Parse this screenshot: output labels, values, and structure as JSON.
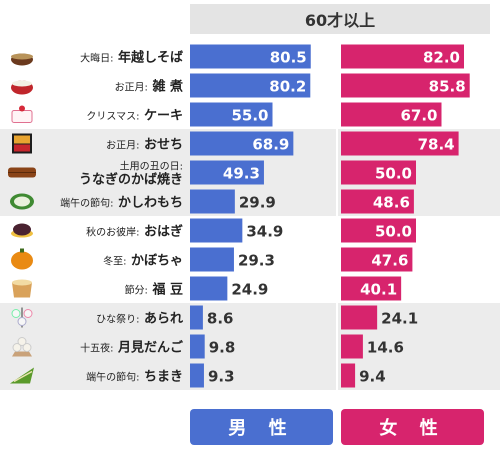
{
  "chart_data": {
    "type": "bar",
    "title": "60才以上",
    "categories": [
      {
        "prefix": "大晦日:",
        "name": "年越しそば",
        "icon": "soba-bowl-icon"
      },
      {
        "prefix": "お正月:",
        "name": "雑 煮",
        "icon": "zoni-bowl-icon"
      },
      {
        "prefix": "クリスマス:",
        "name": "ケーキ",
        "icon": "cake-icon"
      },
      {
        "prefix": "お正月:",
        "name": "おせち",
        "icon": "osechi-box-icon"
      },
      {
        "prefix": "土用の丑の日:",
        "name": "うなぎのかば焼き",
        "icon": "eel-skewer-icon"
      },
      {
        "prefix": "端午の節句:",
        "name": "かしわもち",
        "icon": "kashiwamochi-icon"
      },
      {
        "prefix": "秋のお彼岸:",
        "name": "おはぎ",
        "icon": "ohagi-icon"
      },
      {
        "prefix": "冬至:",
        "name": "かぼちゃ",
        "icon": "pumpkin-icon"
      },
      {
        "prefix": "節分:",
        "name": "福 豆",
        "icon": "bean-box-icon"
      },
      {
        "prefix": "ひな祭り:",
        "name": "あられ",
        "icon": "arare-icon"
      },
      {
        "prefix": "十五夜:",
        "name": "月見だんご",
        "icon": "dango-icon"
      },
      {
        "prefix": "端午の節句:",
        "name": "ちまき",
        "icon": "chimaki-icon"
      }
    ],
    "series": [
      {
        "name": "男 性",
        "color": "#4a6fd0",
        "values": [
          80.5,
          80.2,
          55.0,
          68.9,
          49.3,
          29.9,
          34.9,
          29.3,
          24.9,
          8.6,
          9.8,
          9.3
        ]
      },
      {
        "name": "女 性",
        "color": "#d7246d",
        "values": [
          82.0,
          85.8,
          67.0,
          78.4,
          50.0,
          48.6,
          50.0,
          47.6,
          40.1,
          24.1,
          14.6,
          9.4
        ]
      }
    ],
    "xlim": [
      0,
      100
    ],
    "shaded_groups": [
      [
        3,
        5
      ],
      [
        9,
        11
      ]
    ],
    "shade_color": "#ececec"
  }
}
